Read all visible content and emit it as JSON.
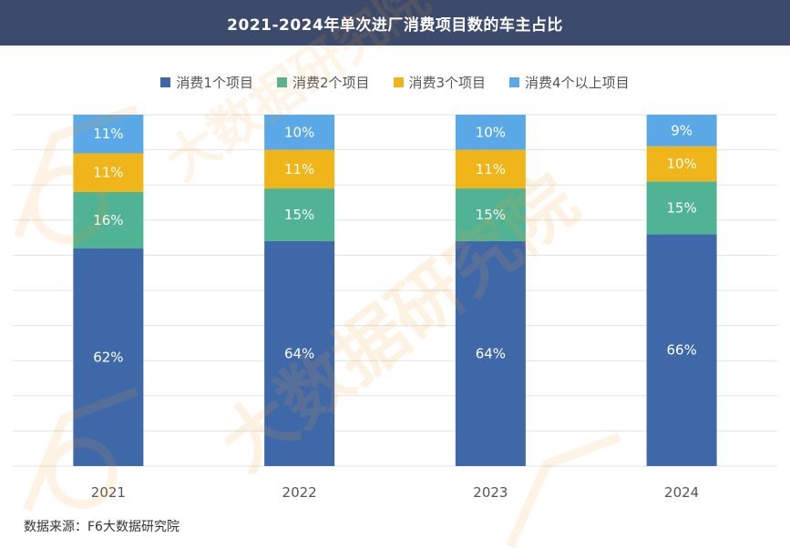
{
  "title": "2021-2024年单次进厂消费项目数的车主占比",
  "source": "数据来源：F6大数据研究院",
  "watermark": "大数据研究院",
  "chart_data": {
    "type": "bar",
    "stacked": true,
    "percent_suffix": "%",
    "categories": [
      "2021",
      "2022",
      "2023",
      "2024"
    ],
    "series": [
      {
        "name": "消费1个项目",
        "color": "#3f68a8",
        "values": [
          62,
          64,
          64,
          66
        ]
      },
      {
        "name": "消费2个项目",
        "color": "#4fb394",
        "values": [
          16,
          15,
          15,
          15
        ]
      },
      {
        "name": "消费3个项目",
        "color": "#f0b619",
        "values": [
          11,
          11,
          11,
          10
        ]
      },
      {
        "name": "消费4个以上项目",
        "color": "#5aa9e6",
        "values": [
          11,
          10,
          10,
          9
        ]
      }
    ],
    "ylim": [
      0,
      100
    ],
    "grid": true,
    "legend_position": "top",
    "xlabel": "",
    "ylabel": ""
  }
}
